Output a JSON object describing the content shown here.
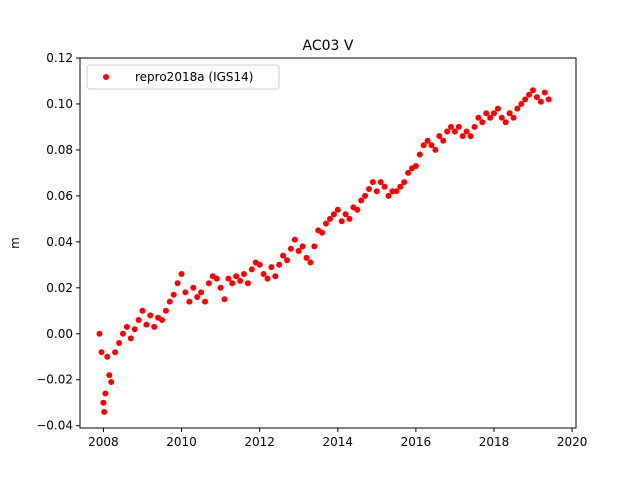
{
  "chart_data": {
    "type": "scatter",
    "title": "AC03 V",
    "xlabel": "",
    "ylabel": "m",
    "xlim": [
      2007.4,
      2020.1
    ],
    "ylim": [
      -0.041,
      0.12
    ],
    "x_ticks": [
      2008,
      2010,
      2012,
      2014,
      2016,
      2018,
      2020
    ],
    "y_ticks": [
      -0.04,
      -0.02,
      0.0,
      0.02,
      0.04,
      0.06,
      0.08,
      0.1,
      0.12
    ],
    "y_tick_labels": [
      "−0.04",
      "−0.02",
      "0.00",
      "0.02",
      "0.04",
      "0.06",
      "0.08",
      "0.10",
      "0.12"
    ],
    "grid": false,
    "legend": {
      "placement": "top-left",
      "entries": [
        "repro2018a (IGS14)"
      ]
    },
    "marker_color": "#ff0000",
    "series": [
      {
        "name": "repro2018a (IGS14)",
        "color": "#ff0000",
        "points": [
          [
            2007.9,
            0.0
          ],
          [
            2007.95,
            -0.008
          ],
          [
            2008.0,
            -0.03
          ],
          [
            2008.02,
            -0.034
          ],
          [
            2008.05,
            -0.026
          ],
          [
            2008.1,
            -0.01
          ],
          [
            2008.15,
            -0.018
          ],
          [
            2008.2,
            -0.021
          ],
          [
            2008.3,
            -0.008
          ],
          [
            2008.4,
            -0.004
          ],
          [
            2008.5,
            0.0
          ],
          [
            2008.6,
            0.003
          ],
          [
            2008.7,
            -0.002
          ],
          [
            2008.8,
            0.002
          ],
          [
            2008.9,
            0.006
          ],
          [
            2009.0,
            0.01
          ],
          [
            2009.1,
            0.004
          ],
          [
            2009.2,
            0.008
          ],
          [
            2009.3,
            0.003
          ],
          [
            2009.4,
            0.007
          ],
          [
            2009.5,
            0.006
          ],
          [
            2009.6,
            0.01
          ],
          [
            2009.7,
            0.014
          ],
          [
            2009.8,
            0.017
          ],
          [
            2009.9,
            0.022
          ],
          [
            2010.0,
            0.026
          ],
          [
            2010.1,
            0.018
          ],
          [
            2010.2,
            0.014
          ],
          [
            2010.3,
            0.02
          ],
          [
            2010.4,
            0.016
          ],
          [
            2010.5,
            0.018
          ],
          [
            2010.6,
            0.014
          ],
          [
            2010.7,
            0.022
          ],
          [
            2010.8,
            0.025
          ],
          [
            2010.9,
            0.024
          ],
          [
            2011.0,
            0.02
          ],
          [
            2011.1,
            0.015
          ],
          [
            2011.2,
            0.024
          ],
          [
            2011.3,
            0.022
          ],
          [
            2011.4,
            0.025
          ],
          [
            2011.5,
            0.023
          ],
          [
            2011.6,
            0.026
          ],
          [
            2011.7,
            0.022
          ],
          [
            2011.8,
            0.028
          ],
          [
            2011.9,
            0.031
          ],
          [
            2012.0,
            0.03
          ],
          [
            2012.1,
            0.026
          ],
          [
            2012.2,
            0.024
          ],
          [
            2012.3,
            0.029
          ],
          [
            2012.4,
            0.025
          ],
          [
            2012.5,
            0.03
          ],
          [
            2012.6,
            0.034
          ],
          [
            2012.7,
            0.032
          ],
          [
            2012.8,
            0.037
          ],
          [
            2012.9,
            0.041
          ],
          [
            2013.0,
            0.036
          ],
          [
            2013.1,
            0.038
          ],
          [
            2013.2,
            0.033
          ],
          [
            2013.3,
            0.031
          ],
          [
            2013.4,
            0.038
          ],
          [
            2013.5,
            0.045
          ],
          [
            2013.6,
            0.044
          ],
          [
            2013.7,
            0.048
          ],
          [
            2013.8,
            0.05
          ],
          [
            2013.9,
            0.052
          ],
          [
            2014.0,
            0.054
          ],
          [
            2014.1,
            0.049
          ],
          [
            2014.2,
            0.052
          ],
          [
            2014.3,
            0.05
          ],
          [
            2014.4,
            0.055
          ],
          [
            2014.5,
            0.054
          ],
          [
            2014.6,
            0.058
          ],
          [
            2014.7,
            0.06
          ],
          [
            2014.8,
            0.063
          ],
          [
            2014.9,
            0.066
          ],
          [
            2015.0,
            0.062
          ],
          [
            2015.1,
            0.066
          ],
          [
            2015.2,
            0.064
          ],
          [
            2015.3,
            0.06
          ],
          [
            2015.4,
            0.062
          ],
          [
            2015.5,
            0.062
          ],
          [
            2015.6,
            0.064
          ],
          [
            2015.7,
            0.066
          ],
          [
            2015.8,
            0.07
          ],
          [
            2015.9,
            0.072
          ],
          [
            2016.0,
            0.073
          ],
          [
            2016.1,
            0.078
          ],
          [
            2016.2,
            0.082
          ],
          [
            2016.3,
            0.084
          ],
          [
            2016.4,
            0.082
          ],
          [
            2016.5,
            0.08
          ],
          [
            2016.6,
            0.086
          ],
          [
            2016.7,
            0.084
          ],
          [
            2016.8,
            0.088
          ],
          [
            2016.9,
            0.09
          ],
          [
            2017.0,
            0.088
          ],
          [
            2017.1,
            0.09
          ],
          [
            2017.2,
            0.086
          ],
          [
            2017.3,
            0.088
          ],
          [
            2017.4,
            0.086
          ],
          [
            2017.5,
            0.09
          ],
          [
            2017.6,
            0.094
          ],
          [
            2017.7,
            0.092
          ],
          [
            2017.8,
            0.096
          ],
          [
            2017.9,
            0.094
          ],
          [
            2018.0,
            0.096
          ],
          [
            2018.1,
            0.098
          ],
          [
            2018.2,
            0.094
          ],
          [
            2018.3,
            0.092
          ],
          [
            2018.4,
            0.096
          ],
          [
            2018.5,
            0.094
          ],
          [
            2018.6,
            0.098
          ],
          [
            2018.7,
            0.1
          ],
          [
            2018.8,
            0.102
          ],
          [
            2018.9,
            0.104
          ],
          [
            2019.0,
            0.106
          ],
          [
            2019.1,
            0.103
          ],
          [
            2019.2,
            0.101
          ],
          [
            2019.3,
            0.105
          ],
          [
            2019.4,
            0.102
          ]
        ]
      }
    ]
  }
}
